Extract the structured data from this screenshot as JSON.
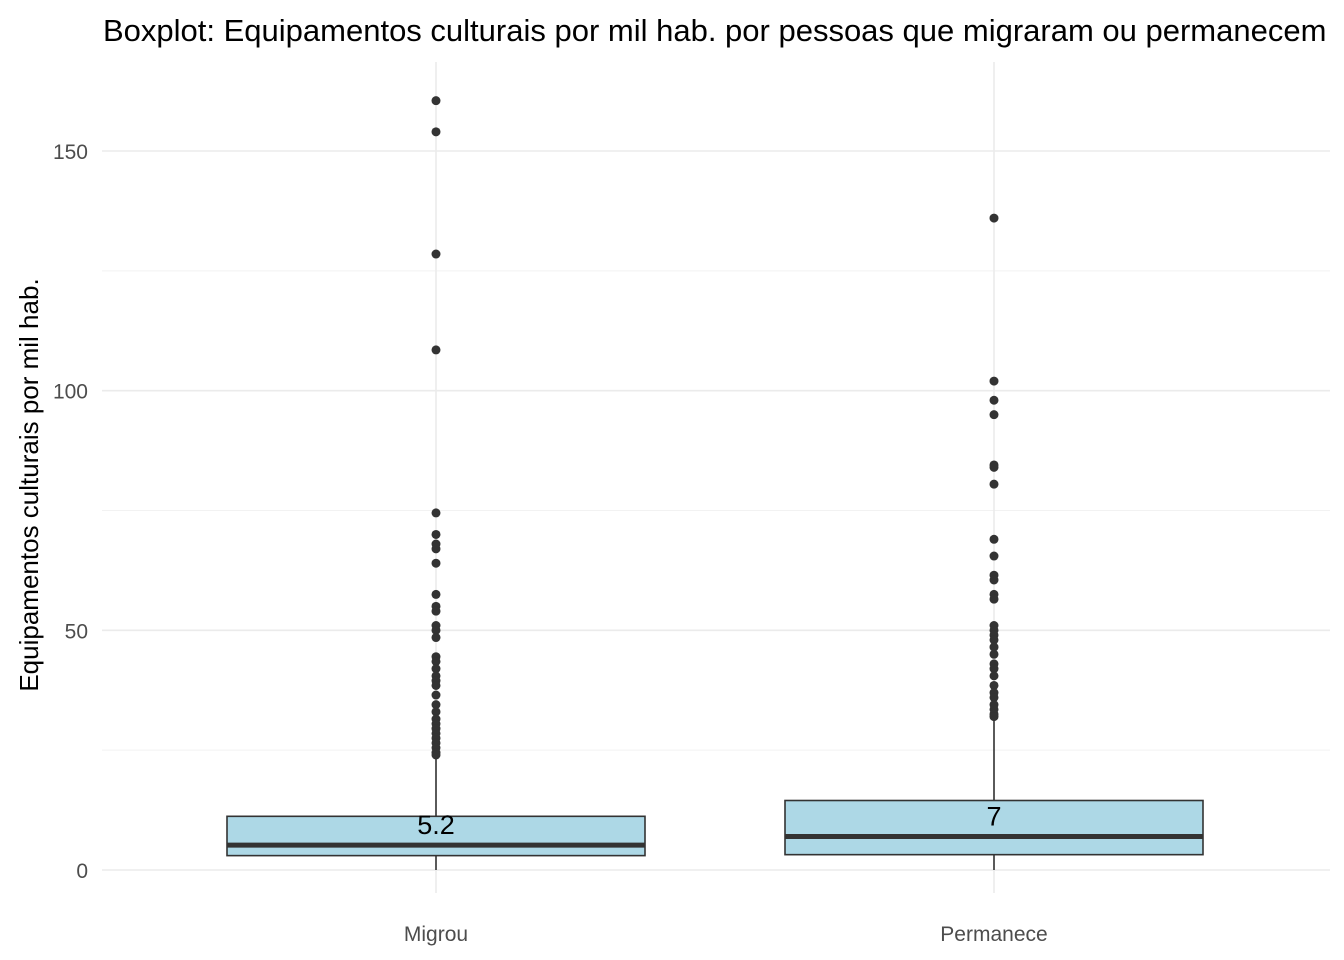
{
  "chart_data": {
    "type": "boxplot",
    "title": "Boxplot: Equipamentos culturais por mil hab. por pessoas que migraram ou permanecem",
    "xlabel": "",
    "ylabel": "Equipamentos culturais por mil hab.",
    "ylim": [
      -6,
      165
    ],
    "y_ticks": [
      0,
      50,
      100,
      150
    ],
    "y_tick_labels": [
      "0",
      "50",
      "100",
      "150"
    ],
    "grid": true,
    "legend": "none",
    "box_fill": "#add8e6",
    "box_stroke": "#333333",
    "point_color": "#333333",
    "categories": [
      "Migrou",
      "Permanece"
    ],
    "boxes": [
      {
        "category": "Migrou",
        "lower_whisker": 0,
        "q1": 3,
        "median": 5.2,
        "q3": 11.2,
        "upper_whisker": 23.5,
        "median_label": "5.2",
        "outliers": [
          160.5,
          154,
          128.5,
          108.5,
          74.5,
          70,
          68,
          67,
          64,
          57.5,
          55,
          54,
          51,
          50,
          48.5,
          44.5,
          43.5,
          42,
          40.5,
          39.5,
          38.5,
          36.5,
          34.5,
          33,
          31.5,
          30.5,
          29.5,
          28.5,
          27.5,
          26.5,
          25.5,
          24.5,
          24
        ]
      },
      {
        "category": "Permanece",
        "lower_whisker": 0,
        "q1": 3.2,
        "median": 7,
        "q3": 14.5,
        "upper_whisker": 31.5,
        "median_label": "7",
        "outliers": [
          136,
          102,
          98,
          95,
          84.5,
          84,
          80.5,
          69,
          65.5,
          61.5,
          60.5,
          57.5,
          56.5,
          51,
          50,
          49,
          48,
          46.5,
          45,
          43,
          42,
          40.5,
          38.5,
          37,
          36,
          34.5,
          33.5,
          32.5,
          32
        ]
      }
    ]
  }
}
